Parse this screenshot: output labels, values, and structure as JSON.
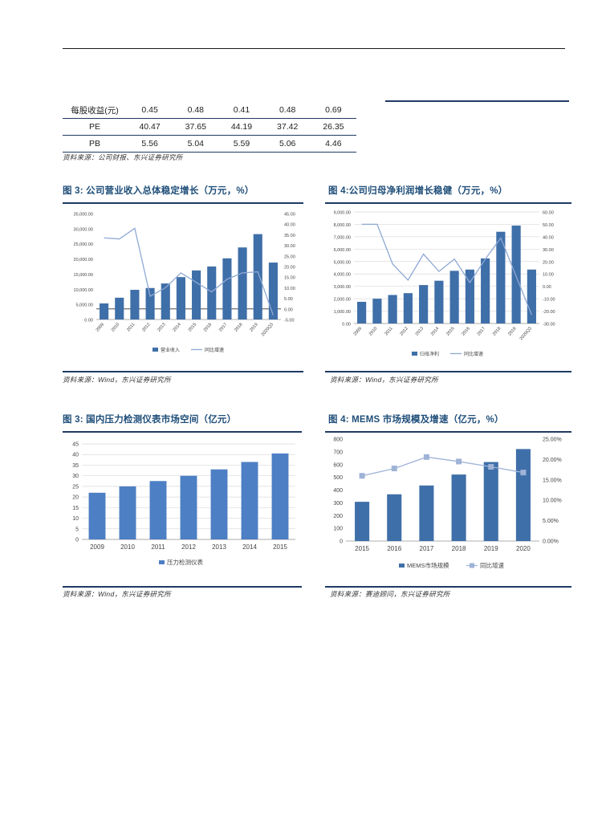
{
  "table": {
    "rows": [
      {
        "label": "每股收益(元)",
        "values": [
          "0.45",
          "0.48",
          "0.41",
          "0.48",
          "0.69"
        ]
      },
      {
        "label": "PE",
        "values": [
          "40.47",
          "37.65",
          "44.19",
          "37.42",
          "26.35"
        ]
      },
      {
        "label": "PB",
        "values": [
          "5.56",
          "5.04",
          "5.59",
          "5.06",
          "4.46"
        ]
      }
    ],
    "source": "资料来源：公司财报、东兴证券研究所"
  },
  "figures": [
    {
      "title": "图 3: 公司营业收入总体稳定增长（万元，%）",
      "source": "资料来源：Wind，东兴证券研究所"
    },
    {
      "title": "图 4:公司归母净利润增长稳健（万元，%）",
      "source": "资料来源：Wind，东兴证券研究所"
    },
    {
      "title": "图 3: 国内压力检测仪表市场空间（亿元）",
      "source": "资料来源：Wind，东兴证券研究所"
    },
    {
      "title": "图 4: MEMS 市场规模及增速（亿元，%）",
      "source": "资料来源：赛迪顾问，东兴证券研究所"
    }
  ],
  "chart_data": [
    {
      "type": "bar",
      "categories": [
        "2009",
        "2010",
        "2011",
        "2012",
        "2013",
        "2014",
        "2015",
        "2016",
        "2017",
        "2018",
        "2019",
        "2020Q3"
      ],
      "series": [
        {
          "name": "营业收入",
          "type": "bar",
          "axis": "left",
          "values": [
            5300,
            7200,
            9800,
            10400,
            11900,
            14000,
            16200,
            17500,
            20200,
            23800,
            28200,
            18800
          ]
        },
        {
          "name": "同比增速",
          "type": "line",
          "axis": "right",
          "values": [
            33.5,
            33,
            38,
            6,
            10,
            17,
            12.5,
            8,
            14,
            17,
            17.5,
            -3
          ]
        }
      ],
      "yticks_left": [
        "0.00",
        "5,000.00",
        "10,000.00",
        "15,000.00",
        "20,000.00",
        "25,000.00",
        "30,000.00",
        "35,000.00"
      ],
      "yticks_right": [
        "-5.00",
        "0.00",
        "5.00",
        "10.00",
        "15.00",
        "20.00",
        "25.00",
        "30.00",
        "35.00",
        "40.00",
        "45.00"
      ],
      "ylim_left": [
        0,
        35000
      ],
      "ylim_right": [
        -5,
        45
      ],
      "colors": {
        "bar": "#3f6fa8",
        "line": "#8fa9d4"
      }
    },
    {
      "type": "bar",
      "categories": [
        "2009",
        "2010",
        "2011",
        "2012",
        "2013",
        "2014",
        "2015",
        "2016",
        "2017",
        "2018",
        "2019",
        "2020Q3"
      ],
      "series": [
        {
          "name": "归母净利",
          "type": "bar",
          "axis": "left",
          "values": [
            1750,
            2000,
            2300,
            2450,
            3100,
            3450,
            4250,
            4350,
            5250,
            7400,
            7900,
            4350
          ]
        },
        {
          "name": "同比增速",
          "type": "line",
          "axis": "right",
          "values": [
            50,
            50,
            18,
            5,
            26,
            12,
            22,
            3,
            22,
            39,
            8,
            -23
          ]
        }
      ],
      "yticks_left": [
        "0.00",
        "1,000.00",
        "2,000.00",
        "3,000.00",
        "4,000.00",
        "5,000.00",
        "6,000.00",
        "7,000.00",
        "8,000.00",
        "9,000.00"
      ],
      "yticks_right": [
        "-30.00",
        "-20.00",
        "-10.00",
        "0.00",
        "10.00",
        "20.00",
        "30.00",
        "40.00",
        "50.00",
        "60.00"
      ],
      "ylim_left": [
        0,
        9000
      ],
      "ylim_right": [
        -30,
        60
      ],
      "colors": {
        "bar": "#3f6fa8",
        "line": "#8fa9d4"
      }
    },
    {
      "type": "bar",
      "categories": [
        "2009",
        "2010",
        "2011",
        "2012",
        "2013",
        "2014",
        "2015"
      ],
      "series": [
        {
          "name": "压力检测仪表",
          "type": "bar",
          "axis": "left",
          "values": [
            22,
            25,
            27.5,
            30,
            33,
            36.5,
            40.5
          ]
        }
      ],
      "yticks_left": [
        "0",
        "5",
        "10",
        "15",
        "20",
        "25",
        "30",
        "35",
        "40",
        "45"
      ],
      "ylim_left": [
        0,
        45
      ],
      "colors": {
        "bar": "#4d7fc4"
      }
    },
    {
      "type": "bar",
      "categories": [
        "2015",
        "2016",
        "2017",
        "2018",
        "2019",
        "2020"
      ],
      "series": [
        {
          "name": "MEMS市场规模",
          "type": "bar",
          "axis": "left",
          "values": [
            308,
            367,
            436,
            522,
            620,
            722
          ]
        },
        {
          "name": "同比增速",
          "type": "line",
          "axis": "right",
          "values": [
            16.0,
            17.8,
            20.6,
            19.5,
            18.2,
            16.8
          ]
        }
      ],
      "yticks_left": [
        "0",
        "100",
        "200",
        "300",
        "400",
        "500",
        "600",
        "700",
        "800"
      ],
      "yticks_right": [
        "0.00%",
        "5.00%",
        "10.00%",
        "15.00%",
        "20.00%",
        "25.00%"
      ],
      "ylim_left": [
        0,
        800
      ],
      "ylim_right": [
        0,
        25
      ],
      "colors": {
        "bar": "#3f6fa8",
        "line": "#9fb3d7"
      }
    }
  ]
}
